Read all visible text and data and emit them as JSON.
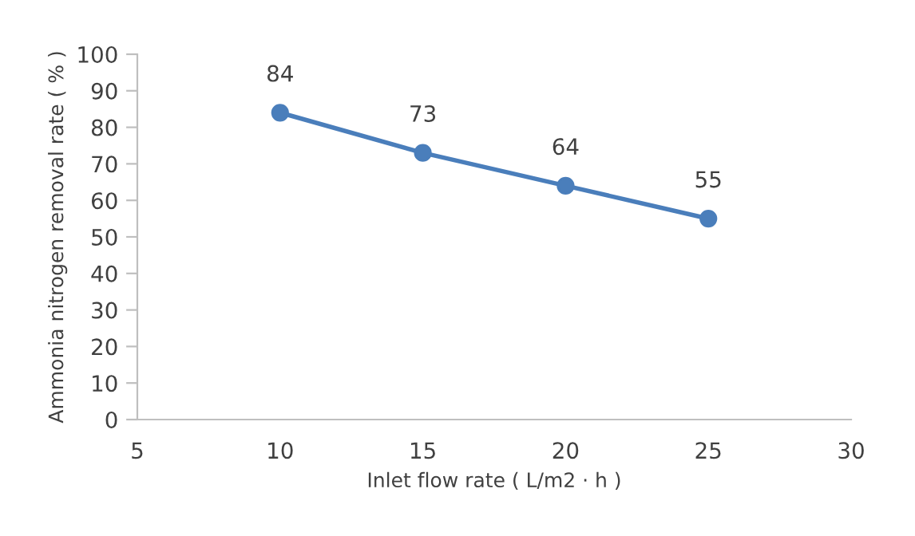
{
  "chart_data": {
    "type": "line",
    "xlabel": "Inlet flow rate ( L/m2 · h )",
    "ylabel": "Ammonia nitrogen removal rate ( % )",
    "x": [
      10,
      15,
      20,
      25
    ],
    "series": [
      {
        "color": "#4a7ebb",
        "values": [
          84,
          73,
          64,
          55
        ]
      }
    ],
    "xlim": [
      5,
      30
    ],
    "xticks": [
      5,
      10,
      15,
      20,
      25,
      30
    ],
    "ylim": [
      0,
      100
    ],
    "yticks": [
      0,
      10,
      20,
      30,
      40,
      50,
      60,
      70,
      80,
      90,
      100
    ],
    "marker": "circle",
    "line_style": "solid",
    "data_labels": true,
    "grid": false,
    "legend": false
  }
}
